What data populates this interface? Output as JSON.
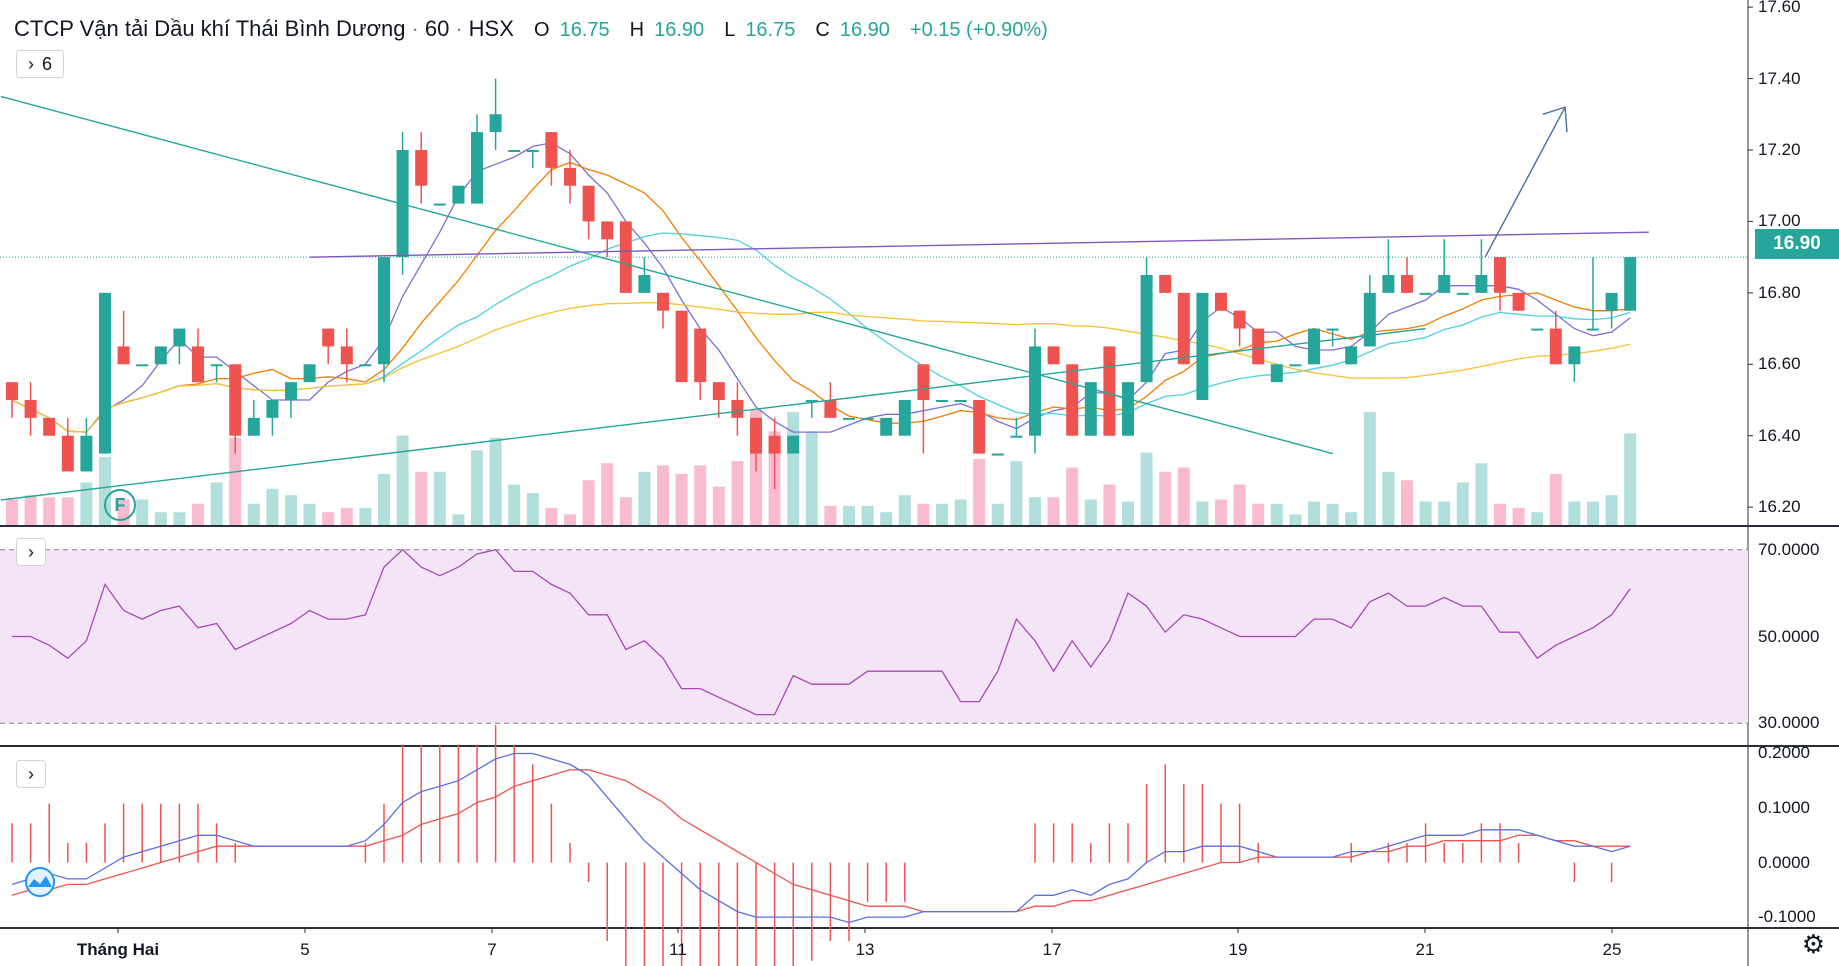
{
  "header": {
    "symbol_name": "CTCP Vận tải Dầu khí Thái Bình Dương",
    "interval": "60",
    "exchange": "HSX",
    "open_label": "O",
    "open_value": "16.75",
    "high_label": "H",
    "high_value": "16.90",
    "low_label": "L",
    "low_value": "16.75",
    "close_label": "C",
    "close_value": "16.90",
    "change": "+0.15 (+0.90%)"
  },
  "indicators_button": {
    "icon": "chevron-right-icon",
    "count": "6"
  },
  "price_axis": {
    "labels": [
      "17.60",
      "17.40",
      "17.20",
      "17.00",
      "16.80",
      "16.60",
      "16.40",
      "16.20"
    ],
    "current_price": "16.90"
  },
  "rsi_axis": {
    "labels": [
      "70.0000",
      "50.0000",
      "30.0000"
    ]
  },
  "macd_axis": {
    "labels": [
      "0.2000",
      "0.1000",
      "0.0000",
      "-0.1000"
    ]
  },
  "time_axis": {
    "labels": [
      "Tháng Hai",
      "5",
      "7",
      "11",
      "13",
      "17",
      "19",
      "21",
      "25"
    ]
  },
  "dividend_marker": "F",
  "colors": {
    "up": "#26a69a",
    "down": "#ef5350",
    "up_volume": "#b2dfdb",
    "down_volume": "#f8bbd0",
    "rsi": "#ab47bc",
    "rsi_band": "#f3e5f5",
    "macd": "#5b6ee1",
    "signal": "#ef5350"
  },
  "chart_data": {
    "type": "candlestick",
    "symbol": "CTCP Vận tải Dầu khí Thái Bình Dương",
    "ylim": [
      16.15,
      17.62
    ],
    "candles": [
      [
        16.55,
        16.5,
        16.45,
        16.55
      ],
      [
        16.5,
        16.45,
        16.4,
        16.55
      ],
      [
        16.45,
        16.4,
        16.4,
        16.45
      ],
      [
        16.4,
        16.3,
        16.3,
        16.45
      ],
      [
        16.3,
        16.4,
        16.3,
        16.45
      ],
      [
        16.35,
        16.8,
        16.35,
        16.8
      ],
      [
        16.65,
        16.6,
        16.6,
        16.75
      ],
      [
        16.6,
        16.6,
        16.6,
        16.6
      ],
      [
        16.6,
        16.65,
        16.6,
        16.65
      ],
      [
        16.65,
        16.7,
        16.6,
        16.7
      ],
      [
        16.65,
        16.55,
        16.55,
        16.7
      ],
      [
        16.6,
        16.6,
        16.55,
        16.6
      ],
      [
        16.6,
        16.4,
        16.35,
        16.6
      ],
      [
        16.4,
        16.45,
        16.4,
        16.5
      ],
      [
        16.45,
        16.5,
        16.4,
        16.5
      ],
      [
        16.5,
        16.55,
        16.45,
        16.55
      ],
      [
        16.55,
        16.6,
        16.55,
        16.6
      ],
      [
        16.7,
        16.65,
        16.6,
        16.7
      ],
      [
        16.65,
        16.6,
        16.55,
        16.7
      ],
      [
        16.6,
        16.6,
        16.6,
        16.6
      ],
      [
        16.6,
        16.9,
        16.55,
        16.9
      ],
      [
        16.9,
        17.2,
        16.85,
        17.25
      ],
      [
        17.2,
        17.1,
        17.05,
        17.25
      ],
      [
        17.05,
        17.05,
        17.05,
        17.05
      ],
      [
        17.05,
        17.1,
        17.05,
        17.1
      ],
      [
        17.05,
        17.25,
        17.05,
        17.3
      ],
      [
        17.25,
        17.3,
        17.2,
        17.4
      ],
      [
        17.2,
        17.2,
        17.2,
        17.2
      ],
      [
        17.2,
        17.2,
        17.15,
        17.2
      ],
      [
        17.25,
        17.15,
        17.1,
        17.25
      ],
      [
        17.15,
        17.1,
        17.05,
        17.2
      ],
      [
        17.1,
        17.0,
        16.95,
        17.1
      ],
      [
        17.0,
        16.95,
        16.9,
        17.0
      ],
      [
        17.0,
        16.8,
        16.8,
        17.0
      ],
      [
        16.8,
        16.85,
        16.8,
        16.9
      ],
      [
        16.8,
        16.75,
        16.7,
        16.8
      ],
      [
        16.75,
        16.55,
        16.55,
        16.75
      ],
      [
        16.7,
        16.55,
        16.5,
        16.7
      ],
      [
        16.55,
        16.5,
        16.45,
        16.55
      ],
      [
        16.5,
        16.45,
        16.4,
        16.55
      ],
      [
        16.45,
        16.35,
        16.3,
        16.45
      ],
      [
        16.4,
        16.35,
        16.25,
        16.45
      ],
      [
        16.35,
        16.4,
        16.35,
        16.4
      ],
      [
        16.5,
        16.5,
        16.45,
        16.5
      ],
      [
        16.5,
        16.45,
        16.45,
        16.55
      ],
      [
        16.45,
        16.45,
        16.45,
        16.45
      ],
      [
        16.45,
        16.45,
        16.45,
        16.45
      ],
      [
        16.4,
        16.45,
        16.4,
        16.45
      ],
      [
        16.4,
        16.5,
        16.4,
        16.5
      ],
      [
        16.6,
        16.5,
        16.35,
        16.6
      ],
      [
        16.5,
        16.5,
        16.5,
        16.5
      ],
      [
        16.5,
        16.5,
        16.5,
        16.5
      ],
      [
        16.5,
        16.35,
        16.35,
        16.5
      ],
      [
        16.35,
        16.35,
        16.35,
        16.35
      ],
      [
        16.4,
        16.4,
        16.4,
        16.45
      ],
      [
        16.4,
        16.65,
        16.35,
        16.7
      ],
      [
        16.65,
        16.6,
        16.6,
        16.65
      ],
      [
        16.6,
        16.4,
        16.4,
        16.6
      ],
      [
        16.4,
        16.55,
        16.4,
        16.55
      ],
      [
        16.65,
        16.4,
        16.4,
        16.65
      ],
      [
        16.4,
        16.55,
        16.4,
        16.55
      ],
      [
        16.55,
        16.85,
        16.55,
        16.9
      ],
      [
        16.85,
        16.8,
        16.8,
        16.85
      ],
      [
        16.8,
        16.6,
        16.6,
        16.8
      ],
      [
        16.5,
        16.8,
        16.5,
        16.8
      ],
      [
        16.8,
        16.75,
        16.75,
        16.8
      ],
      [
        16.75,
        16.7,
        16.65,
        16.75
      ],
      [
        16.7,
        16.6,
        16.6,
        16.7
      ],
      [
        16.55,
        16.6,
        16.55,
        16.6
      ],
      [
        16.6,
        16.6,
        16.6,
        16.6
      ],
      [
        16.6,
        16.7,
        16.6,
        16.7
      ],
      [
        16.7,
        16.7,
        16.65,
        16.7
      ],
      [
        16.6,
        16.65,
        16.6,
        16.65
      ],
      [
        16.65,
        16.8,
        16.65,
        16.85
      ],
      [
        16.8,
        16.85,
        16.8,
        16.95
      ],
      [
        16.85,
        16.8,
        16.8,
        16.9
      ],
      [
        16.8,
        16.8,
        16.8,
        16.8
      ],
      [
        16.8,
        16.85,
        16.8,
        16.95
      ],
      [
        16.8,
        16.8,
        16.8,
        16.8
      ],
      [
        16.8,
        16.85,
        16.8,
        16.95
      ],
      [
        16.9,
        16.8,
        16.75,
        16.9
      ],
      [
        16.8,
        16.75,
        16.75,
        16.8
      ],
      [
        16.7,
        16.7,
        16.7,
        16.7
      ],
      [
        16.7,
        16.6,
        16.6,
        16.75
      ],
      [
        16.6,
        16.65,
        16.55,
        16.65
      ],
      [
        16.7,
        16.7,
        16.7,
        16.9
      ],
      [
        16.75,
        16.8,
        16.7,
        16.8
      ],
      [
        16.75,
        16.9,
        16.75,
        16.9
      ]
    ],
    "volume": [
      12,
      14,
      13,
      13,
      20,
      32,
      12,
      12,
      6,
      6,
      10,
      20,
      41,
      10,
      17,
      14,
      10,
      6,
      8,
      8,
      24,
      42,
      25,
      25,
      5,
      35,
      41,
      19,
      15,
      8,
      5,
      21,
      29,
      13,
      25,
      28,
      24,
      28,
      18,
      30,
      54,
      44,
      53,
      44,
      9,
      9,
      9,
      6,
      14,
      10,
      10,
      12,
      31,
      10,
      30,
      13,
      13,
      27,
      12,
      19,
      11,
      34,
      25,
      27,
      11,
      12,
      19,
      10,
      10,
      5,
      11,
      10,
      6,
      53,
      25,
      21,
      11,
      11,
      20,
      29,
      10,
      8,
      6,
      24,
      11,
      11,
      14,
      43
    ],
    "rsi": [
      50,
      50,
      48,
      45,
      49,
      62,
      56,
      54,
      56,
      57,
      52,
      53,
      47,
      49,
      51,
      53,
      56,
      54,
      54,
      55,
      66,
      70,
      66,
      64,
      66,
      69,
      70,
      65,
      65,
      62,
      60,
      55,
      55,
      47,
      49,
      45,
      38,
      38,
      36,
      34,
      32,
      32,
      41,
      39,
      39,
      39,
      42,
      42,
      42,
      42,
      42,
      35,
      35,
      42,
      54,
      49,
      42,
      49,
      43,
      49,
      60,
      57,
      51,
      55,
      54,
      52,
      50,
      50,
      50,
      50,
      54,
      54,
      52,
      58,
      60,
      57,
      57,
      59,
      57,
      57,
      51,
      51,
      45,
      48,
      50,
      52,
      55,
      61
    ],
    "macd": [
      -0.04,
      -0.03,
      -0.02,
      -0.03,
      -0.03,
      -0.01,
      0.01,
      0.02,
      0.03,
      0.04,
      0.05,
      0.05,
      0.04,
      0.03,
      0.03,
      0.03,
      0.03,
      0.03,
      0.03,
      0.04,
      0.07,
      0.11,
      0.13,
      0.14,
      0.15,
      0.17,
      0.19,
      0.2,
      0.2,
      0.19,
      0.18,
      0.16,
      0.12,
      0.08,
      0.04,
      0.01,
      -0.02,
      -0.05,
      -0.07,
      -0.09,
      -0.1,
      -0.1,
      -0.1,
      -0.1,
      -0.1,
      -0.11,
      -0.1,
      -0.1,
      -0.1,
      -0.09,
      -0.09,
      -0.09,
      -0.09,
      -0.09,
      -0.09,
      -0.06,
      -0.06,
      -0.05,
      -0.06,
      -0.04,
      -0.03,
      0.0,
      0.02,
      0.02,
      0.03,
      0.03,
      0.03,
      0.02,
      0.01,
      0.01,
      0.01,
      0.01,
      0.02,
      0.02,
      0.03,
      0.04,
      0.05,
      0.05,
      0.05,
      0.06,
      0.06,
      0.06,
      0.05,
      0.04,
      0.03,
      0.03,
      0.02,
      0.03
    ],
    "signal": [
      -0.06,
      -0.05,
      -0.05,
      -0.04,
      -0.04,
      -0.03,
      -0.02,
      -0.01,
      0.0,
      0.01,
      0.02,
      0.03,
      0.03,
      0.03,
      0.03,
      0.03,
      0.03,
      0.03,
      0.03,
      0.03,
      0.04,
      0.05,
      0.07,
      0.08,
      0.09,
      0.11,
      0.12,
      0.14,
      0.15,
      0.16,
      0.17,
      0.17,
      0.16,
      0.15,
      0.13,
      0.11,
      0.08,
      0.06,
      0.04,
      0.02,
      0.0,
      -0.02,
      -0.04,
      -0.05,
      -0.06,
      -0.07,
      -0.08,
      -0.08,
      -0.08,
      -0.09,
      -0.09,
      -0.09,
      -0.09,
      -0.09,
      -0.09,
      -0.08,
      -0.08,
      -0.07,
      -0.07,
      -0.06,
      -0.05,
      -0.04,
      -0.03,
      -0.02,
      -0.01,
      0.0,
      0.0,
      0.01,
      0.01,
      0.01,
      0.01,
      0.01,
      0.01,
      0.02,
      0.02,
      0.03,
      0.03,
      0.04,
      0.04,
      0.04,
      0.04,
      0.05,
      0.05,
      0.04,
      0.04,
      0.03,
      0.03,
      0.03
    ],
    "rsi_levels": [
      70,
      30
    ],
    "macd_ylim": [
      -0.12,
      0.21
    ],
    "rsi_ylim": [
      25,
      75
    ]
  }
}
